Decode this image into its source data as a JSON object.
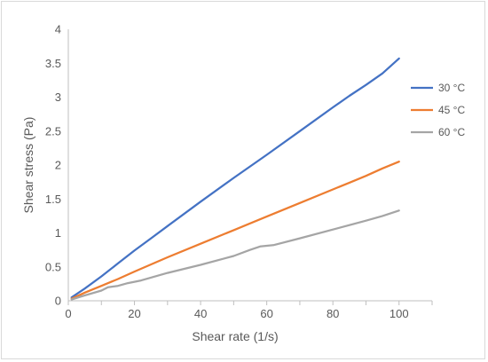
{
  "chart_data": {
    "type": "line",
    "title": "",
    "xlabel": "Shear rate (1/s)",
    "ylabel": "Shear stress (Pa)",
    "xlim": [
      0,
      110
    ],
    "ylim": [
      0,
      4
    ],
    "x_ticks": [
      "0",
      "20",
      "40",
      "60",
      "80",
      "100"
    ],
    "y_ticks": [
      "0",
      "0.5",
      "1",
      "1.5",
      "2",
      "2.5",
      "3",
      "3.5",
      "4"
    ],
    "grid": false,
    "legend_position": "right",
    "series": [
      {
        "name": "30 °C",
        "color": "#4472c4",
        "points": [
          [
            1,
            0.05
          ],
          [
            5,
            0.18
          ],
          [
            10,
            0.36
          ],
          [
            15,
            0.55
          ],
          [
            20,
            0.74
          ],
          [
            25,
            0.92
          ],
          [
            30,
            1.1
          ],
          [
            40,
            1.46
          ],
          [
            50,
            1.81
          ],
          [
            60,
            2.15
          ],
          [
            70,
            2.5
          ],
          [
            80,
            2.85
          ],
          [
            85,
            3.02
          ],
          [
            90,
            3.18
          ],
          [
            95,
            3.35
          ],
          [
            100,
            3.57
          ]
        ]
      },
      {
        "name": "45 °C",
        "color": "#ed7d31",
        "points": [
          [
            1,
            0.03
          ],
          [
            5,
            0.12
          ],
          [
            10,
            0.22
          ],
          [
            15,
            0.32
          ],
          [
            20,
            0.43
          ],
          [
            30,
            0.64
          ],
          [
            40,
            0.84
          ],
          [
            50,
            1.04
          ],
          [
            60,
            1.24
          ],
          [
            70,
            1.44
          ],
          [
            80,
            1.64
          ],
          [
            85,
            1.74
          ],
          [
            90,
            1.84
          ],
          [
            95,
            1.95
          ],
          [
            100,
            2.05
          ]
        ]
      },
      {
        "name": "60 °C",
        "color": "#a5a5a5",
        "points": [
          [
            1,
            0.02
          ],
          [
            5,
            0.08
          ],
          [
            10,
            0.15
          ],
          [
            12,
            0.2
          ],
          [
            15,
            0.22
          ],
          [
            18,
            0.26
          ],
          [
            22,
            0.3
          ],
          [
            30,
            0.41
          ],
          [
            40,
            0.53
          ],
          [
            50,
            0.66
          ],
          [
            55,
            0.75
          ],
          [
            58,
            0.8
          ],
          [
            62,
            0.82
          ],
          [
            70,
            0.92
          ],
          [
            80,
            1.05
          ],
          [
            90,
            1.18
          ],
          [
            95,
            1.25
          ],
          [
            100,
            1.33
          ]
        ]
      }
    ]
  }
}
